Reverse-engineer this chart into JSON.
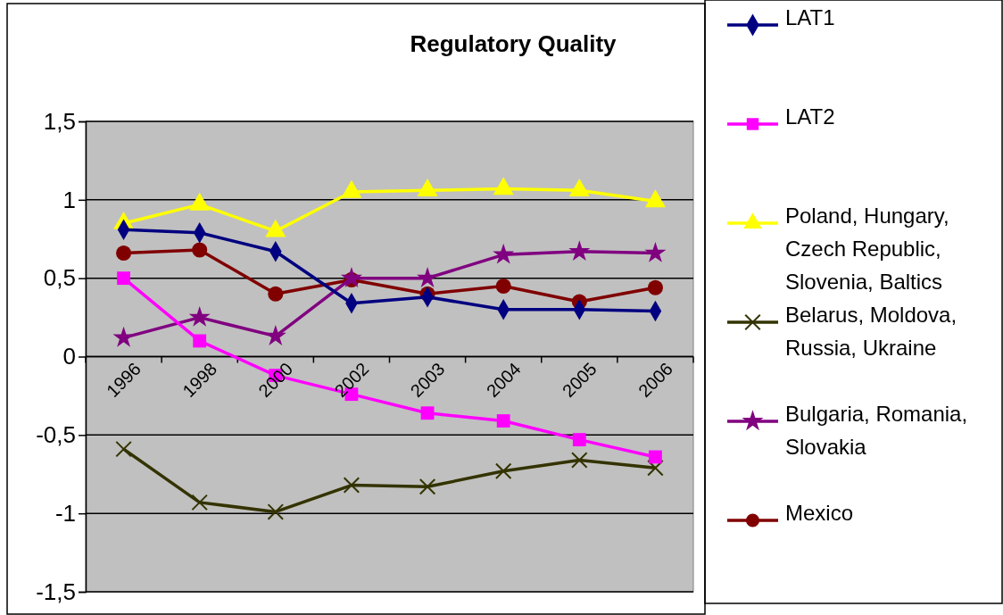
{
  "chart_data": {
    "type": "line",
    "title": "Regulatory Quality",
    "categories": [
      "1996",
      "1998",
      "2000",
      "2002",
      "2003",
      "2004",
      "2005",
      "2006"
    ],
    "series": [
      {
        "name": "LAT1",
        "color": "#000080",
        "marker": "diamond",
        "values": [
          0.81,
          0.79,
          0.67,
          0.34,
          0.38,
          0.3,
          0.3,
          0.29
        ]
      },
      {
        "name": "LAT2",
        "color": "#ff00ff",
        "marker": "square",
        "values": [
          0.5,
          0.1,
          -0.12,
          -0.24,
          -0.36,
          -0.41,
          -0.53,
          -0.64
        ]
      },
      {
        "name": "Poland, Hungary, Czech Republic, Slovenia, Baltics",
        "color": "#ffff00",
        "marker": "triangle",
        "values": [
          0.85,
          0.97,
          0.8,
          1.05,
          1.06,
          1.07,
          1.06,
          0.99
        ]
      },
      {
        "name": "Belarus, Moldova, Russia, Ukraine",
        "color": "#333300",
        "marker": "cross",
        "values": [
          -0.59,
          -0.93,
          -0.99,
          -0.82,
          -0.83,
          -0.73,
          -0.66,
          -0.71
        ]
      },
      {
        "name": "Bulgaria, Romania, Slovakia",
        "color": "#800080",
        "marker": "star",
        "values": [
          0.12,
          0.25,
          0.13,
          0.5,
          0.5,
          0.65,
          0.67,
          0.66
        ]
      },
      {
        "name": "Mexico",
        "color": "#800000",
        "marker": "circle",
        "values": [
          0.66,
          0.68,
          0.4,
          0.49,
          0.4,
          0.45,
          0.35,
          0.44
        ]
      }
    ],
    "ylim": [
      -1.5,
      1.5
    ],
    "yticks": [
      {
        "value": -1.5,
        "label": "-1,5"
      },
      -1,
      {
        "value": -0.5,
        "label": "-0,5"
      },
      0,
      {
        "value": 0.5,
        "label": "0,5"
      },
      1,
      {
        "value": 1.5,
        "label": "1,5"
      }
    ],
    "grid": "y",
    "legend": "right"
  }
}
